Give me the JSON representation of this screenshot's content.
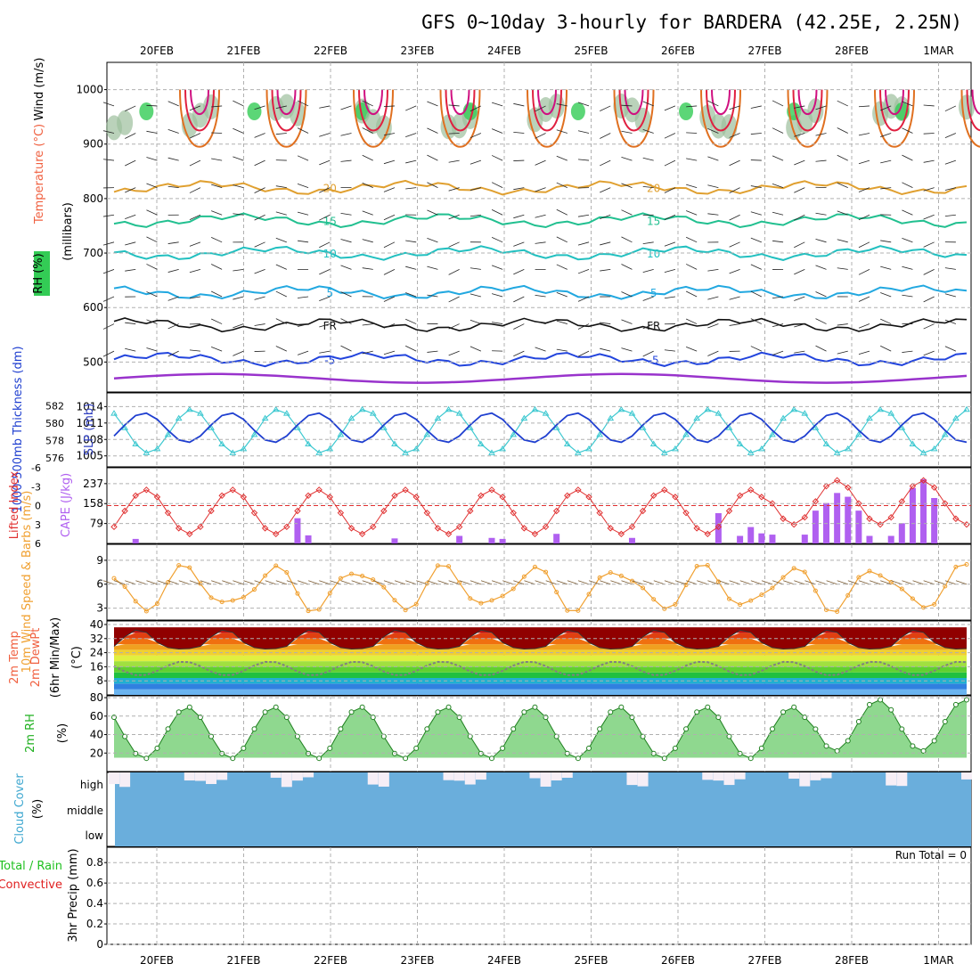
{
  "chart_data": {
    "type": "meteogram",
    "title": "GFS 0~10day 3-hourly for BARDERA (42.25E, 2.25N)",
    "dates": [
      "20FEB",
      "21FEB",
      "22FEB",
      "23FEB",
      "24FEB",
      "25FEB",
      "26FEB",
      "27FEB",
      "28FEB",
      "1MAR"
    ],
    "time_step_hours": 3,
    "steps": 80,
    "colors": {
      "frame": "#000000",
      "grid": "#b0b0b0",
      "thickness": "#1f3fd0",
      "slp": "#3cc8d0",
      "lifted_index": "#e03030",
      "cape": "#b060f0",
      "wind10": "#f0a030",
      "dewpoint": "#808080",
      "rh_line": "#208020",
      "cloud": "#6aaedc",
      "cloud_high": "#f6eef6",
      "temp_label": "#f06040",
      "rh_label": "#20b020",
      "cloud_label": "#40a8d0",
      "precip_total": "#20c020",
      "precip_conv": "#e02020"
    },
    "upper_air": {
      "ylabel_word": "Wind (m/s)",
      "ylabel_temp": "Temperature (°C)",
      "ylabel_rh": "RH (%)",
      "ylabel_mb": "(millibars)",
      "pressure_ticks": [
        "500",
        "600",
        "700",
        "800",
        "900",
        "1000"
      ],
      "pressure_values": [
        500,
        600,
        700,
        800,
        900,
        1000
      ],
      "ylim": [
        445,
        1050
      ],
      "isotherms": [
        {
          "label": "-5",
          "pressure": 505,
          "color": "#2244dd"
        },
        {
          "label": "FR",
          "pressure": 568,
          "color": "#111111"
        },
        {
          "label": "5",
          "pressure": 628,
          "color": "#22a8e0"
        },
        {
          "label": "10",
          "pressure": 700,
          "color": "#22c0c0"
        },
        {
          "label": "15",
          "pressure": 760,
          "color": "#22c090"
        },
        {
          "label": "20",
          "pressure": 820,
          "color": "#e0a030"
        }
      ],
      "top_isotherm_color": "#9933cc",
      "diurnal_colors": [
        "#e07020",
        "#e02040",
        "#d01080"
      ]
    },
    "thickness_slp": {
      "ylabel_thk": "1000-500mb Thickness (dm)",
      "ylabel_slp": "SLP (mb)",
      "thk_ticks": [
        "582",
        "580",
        "578",
        "576"
      ],
      "thk_values": [
        582,
        580,
        578,
        576
      ],
      "slp_ticks": [
        "1014",
        "1011",
        "1008",
        "1005"
      ],
      "slp_values": [
        1014,
        1011,
        1008,
        1005
      ],
      "slp_ylim": [
        1003,
        1016.5
      ]
    },
    "stability": {
      "ylabel_li": "Lifted Index",
      "ylabel_cape": "CAPE (J/kg)",
      "li_ticks": [
        "-6",
        "-3",
        "0",
        "3",
        "6"
      ],
      "li_values": [
        -6,
        -3,
        0,
        3,
        6
      ],
      "cape_ticks": [
        "237",
        "158",
        "79"
      ],
      "cape_values": [
        237,
        158,
        79
      ],
      "cape_ylim": [
        0,
        300
      ],
      "cape_bars": [
        {
          "step": 2,
          "value": 18
        },
        {
          "step": 17,
          "value": 100
        },
        {
          "step": 18,
          "value": 32
        },
        {
          "step": 26,
          "value": 20
        },
        {
          "step": 32,
          "value": 30
        },
        {
          "step": 35,
          "value": 22
        },
        {
          "step": 36,
          "value": 18
        },
        {
          "step": 41,
          "value": 38
        },
        {
          "step": 48,
          "value": 22
        },
        {
          "step": 56,
          "value": 120
        },
        {
          "step": 58,
          "value": 30
        },
        {
          "step": 59,
          "value": 65
        },
        {
          "step": 60,
          "value": 40
        },
        {
          "step": 61,
          "value": 35
        },
        {
          "step": 64,
          "value": 35
        },
        {
          "step": 65,
          "value": 130
        },
        {
          "step": 66,
          "value": 160
        },
        {
          "step": 67,
          "value": 200
        },
        {
          "step": 68,
          "value": 185
        },
        {
          "step": 69,
          "value": 130
        },
        {
          "step": 70,
          "value": 30
        },
        {
          "step": 72,
          "value": 30
        },
        {
          "step": 73,
          "value": 80
        },
        {
          "step": 74,
          "value": 220
        },
        {
          "step": 75,
          "value": 255
        },
        {
          "step": 76,
          "value": 180
        }
      ]
    },
    "wind10": {
      "ylabel": "10m Wind Speed & Barbs (m/s)",
      "ticks": [
        "9",
        "6",
        "3"
      ],
      "values": [
        9,
        6,
        3
      ],
      "ylim": [
        1.5,
        11
      ]
    },
    "temp2m": {
      "ylabel": "2m Temp 2m DewPt (6hr Min/Max) (°C)",
      "ticks": [
        "40",
        "32",
        "24",
        "16",
        "8"
      ],
      "values": [
        40,
        32,
        24,
        16,
        8
      ],
      "ylim": [
        0,
        42
      ],
      "band_colors": [
        "#6ab4f0",
        "#3080e0",
        "#20b0d0",
        "#20c040",
        "#60d030",
        "#a0e040",
        "#e0f040",
        "#f0d030",
        "#f0a020",
        "#f07010",
        "#e04010",
        "#c01010",
        "#900000"
      ]
    },
    "rh2m": {
      "ylabel": "2m RH",
      "unit": "(%)",
      "ticks": [
        "80",
        "60",
        "40",
        "20"
      ],
      "values": [
        80,
        60,
        40,
        20
      ],
      "ylim": [
        0,
        82
      ]
    },
    "cloud": {
      "ylabel": "Cloud Cover",
      "unit": "(%)",
      "levels": [
        "high",
        "middle",
        "low"
      ]
    },
    "precip": {
      "ylabel": "3hr Precip (mm)",
      "legend_total": "Total / Rain",
      "legend_conv": "Convective",
      "run_total": "Run Total = 0",
      "ticks": [
        "0.8",
        "0.6",
        "0.4",
        "0.2",
        "0"
      ],
      "values": [
        0.8,
        0.6,
        0.4,
        0.2,
        0
      ],
      "ylim": [
        0,
        0.95
      ]
    }
  }
}
